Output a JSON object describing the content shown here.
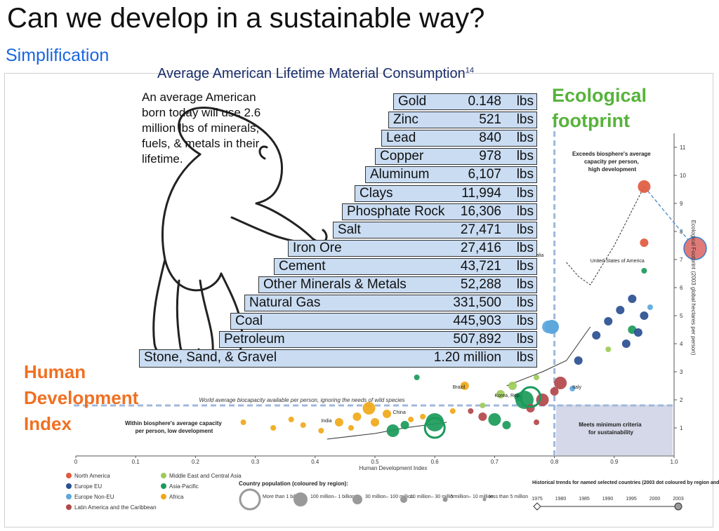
{
  "slide": {
    "title": "Can we develop in a sustainable way?",
    "subtitle": "Simplification"
  },
  "stairs": {
    "title": "Average American Lifetime Material Consumption",
    "title_sup": "14",
    "baby_text": "An average American born today will use 2.6 million lbs of minerals, fuels, & metals in their lifetime.",
    "unit": "lbs",
    "items": [
      {
        "name": "Gold",
        "value": "0.148"
      },
      {
        "name": "Zinc",
        "value": "521"
      },
      {
        "name": "Lead",
        "value": "840"
      },
      {
        "name": "Copper",
        "value": "978"
      },
      {
        "name": "Aluminum",
        "value": "6,107"
      },
      {
        "name": "Clays",
        "value": "11,994"
      },
      {
        "name": "Phosphate Rock",
        "value": "16,306"
      },
      {
        "name": "Salt",
        "value": "27,471"
      },
      {
        "name": "Iron Ore",
        "value": "27,416"
      },
      {
        "name": "Cement",
        "value": "43,721"
      },
      {
        "name": "Other Minerals & Metals",
        "value": "52,288"
      },
      {
        "name": "Natural Gas",
        "value": "331,500"
      },
      {
        "name": "Coal",
        "value": "445,903"
      },
      {
        "name": "Petroleum",
        "value": "507,892"
      },
      {
        "name": "Stone, Sand, & Gravel",
        "value": "1.20 million"
      }
    ]
  },
  "labels": {
    "eco": "Ecological\nfootprint",
    "hdi": "Human\nDevelopment\nIndex"
  },
  "chart_data": {
    "type": "scatter",
    "xlabel": "Human Development Index",
    "ylabel": "Ecological Footprint (2003 global hectares per person)",
    "xlim": [
      0,
      1.0
    ],
    "ylim": [
      0,
      11.5
    ],
    "x_ticks": [
      "0",
      "0.1",
      "0.2",
      "0.3",
      "0.4",
      "0.5",
      "0.6",
      "0.7",
      "0.8",
      "0.9",
      "1.0"
    ],
    "y_ticks": [
      "1",
      "2",
      "3",
      "4",
      "5",
      "6",
      "7",
      "8",
      "9",
      "10",
      "11"
    ],
    "biocapacity_line": {
      "y": 1.8,
      "label": "World average biocapacity available per person, ignoring the needs of wild species"
    },
    "hdi_threshold": 0.8,
    "annotations": {
      "top": "Exceeds biosphere's average capacity per person, high development",
      "left": "Within biosphere's average capacity per person, low development",
      "right": "Meets minimum criteria for sustainability"
    },
    "country_labels": [
      "Australia",
      "United States of America",
      "Italy",
      "Korea, Rep.",
      "Brazil",
      "China",
      "India"
    ],
    "region_colors": {
      "North America": "#e05a3e",
      "Europe EU": "#2a4f91",
      "Europe Non-EU": "#5da7dd",
      "Latin America and the Caribbean": "#b3474a",
      "Middle East and Central Asia": "#9ccb58",
      "Asia-Pacific": "#1a9a5a",
      "Africa": "#f0a818"
    },
    "legend": [
      {
        "name": "North America",
        "color": "#e05a3e"
      },
      {
        "name": "Europe EU",
        "color": "#2a4f91"
      },
      {
        "name": "Europe Non-EU",
        "color": "#5da7dd"
      },
      {
        "name": "Latin America and the Caribbean",
        "color": "#b3474a"
      },
      {
        "name": "Middle East and Central Asia",
        "color": "#9ccb58"
      },
      {
        "name": "Asia-Pacific",
        "color": "#1a9a5a"
      },
      {
        "name": "Africa",
        "color": "#f0a818"
      }
    ],
    "population_legend": {
      "title": "Country population (coloured by region):",
      "sizes": [
        "More than 1 billion",
        "100 million– 1 billion",
        "30 million– 100 million",
        "10 million– 30 million",
        "5 million– 10 million",
        "less than 5 million"
      ]
    },
    "trend_legend": {
      "title": "Historical trends for named selected countries (2003 dot coloured by region and sized by population):",
      "years": [
        "1975",
        "1980",
        "1985",
        "1990",
        "1995",
        "2000",
        "2003"
      ]
    },
    "points": [
      {
        "region": "Africa",
        "x": 0.28,
        "y": 1.2,
        "size": 2
      },
      {
        "region": "Africa",
        "x": 0.33,
        "y": 1.0,
        "size": 2
      },
      {
        "region": "Africa",
        "x": 0.36,
        "y": 1.3,
        "size": 2
      },
      {
        "region": "Africa",
        "x": 0.38,
        "y": 1.1,
        "size": 2
      },
      {
        "region": "Africa",
        "x": 0.41,
        "y": 0.9,
        "size": 2
      },
      {
        "region": "Africa",
        "x": 0.44,
        "y": 1.2,
        "size": 3
      },
      {
        "region": "Africa",
        "x": 0.46,
        "y": 1.0,
        "size": 2
      },
      {
        "region": "Africa",
        "x": 0.47,
        "y": 1.4,
        "size": 3
      },
      {
        "region": "Africa",
        "x": 0.49,
        "y": 1.7,
        "size": 4
      },
      {
        "region": "Africa",
        "x": 0.5,
        "y": 1.2,
        "size": 3
      },
      {
        "region": "Africa",
        "x": 0.52,
        "y": 1.5,
        "size": 3
      },
      {
        "region": "Africa",
        "x": 0.56,
        "y": 1.3,
        "size": 2
      },
      {
        "region": "Africa",
        "x": 0.58,
        "y": 1.4,
        "size": 2
      },
      {
        "region": "Africa",
        "x": 0.63,
        "y": 1.6,
        "size": 2
      },
      {
        "region": "Africa",
        "x": 0.65,
        "y": 2.5,
        "size": 3
      },
      {
        "region": "Asia-Pacific",
        "x": 0.53,
        "y": 0.9,
        "size": 4
      },
      {
        "region": "Asia-Pacific",
        "x": 0.55,
        "y": 1.1,
        "size": 3
      },
      {
        "region": "Asia-Pacific",
        "x": 0.57,
        "y": 2.8,
        "size": 2
      },
      {
        "region": "Asia-Pacific",
        "x": 0.6,
        "y": 1.2,
        "size": 5
      },
      {
        "region": "Asia-Pacific",
        "x": 0.7,
        "y": 1.3,
        "size": 4
      },
      {
        "region": "Asia-Pacific",
        "x": 0.72,
        "y": 1.1,
        "size": 3
      },
      {
        "region": "Asia-Pacific",
        "x": 0.74,
        "y": 2.1,
        "size": 3
      },
      {
        "region": "Asia-Pacific",
        "x": 0.75,
        "y": 2.0,
        "size": 5
      },
      {
        "region": "Asia-Pacific",
        "x": 0.93,
        "y": 4.5,
        "size": 3
      },
      {
        "region": "Asia-Pacific",
        "x": 0.95,
        "y": 6.6,
        "size": 2
      },
      {
        "region": "Middle East and Central Asia",
        "x": 0.68,
        "y": 1.8,
        "size": 2
      },
      {
        "region": "Middle East and Central Asia",
        "x": 0.71,
        "y": 2.2,
        "size": 3
      },
      {
        "region": "Middle East and Central Asia",
        "x": 0.73,
        "y": 2.5,
        "size": 3
      },
      {
        "region": "Middle East and Central Asia",
        "x": 0.77,
        "y": 2.8,
        "size": 2
      },
      {
        "region": "Middle East and Central Asia",
        "x": 0.89,
        "y": 3.8,
        "size": 2
      },
      {
        "region": "Latin America and the Caribbean",
        "x": 0.66,
        "y": 1.6,
        "size": 2
      },
      {
        "region": "Latin America and the Caribbean",
        "x": 0.68,
        "y": 1.4,
        "size": 3
      },
      {
        "region": "Latin America and the Caribbean",
        "x": 0.76,
        "y": 1.7,
        "size": 3
      },
      {
        "region": "Latin America and the Caribbean",
        "x": 0.77,
        "y": 1.2,
        "size": 2
      },
      {
        "region": "Latin America and the Caribbean",
        "x": 0.78,
        "y": 2.0,
        "size": 4
      },
      {
        "region": "Latin America and the Caribbean",
        "x": 0.8,
        "y": 2.3,
        "size": 3
      },
      {
        "region": "Latin America and the Caribbean",
        "x": 0.81,
        "y": 2.6,
        "size": 4
      },
      {
        "region": "Europe EU",
        "x": 0.84,
        "y": 3.4,
        "size": 3
      },
      {
        "region": "Europe EU",
        "x": 0.87,
        "y": 4.3,
        "size": 3
      },
      {
        "region": "Europe EU",
        "x": 0.89,
        "y": 4.8,
        "size": 3
      },
      {
        "region": "Europe EU",
        "x": 0.91,
        "y": 5.2,
        "size": 3
      },
      {
        "region": "Europe EU",
        "x": 0.92,
        "y": 4.0,
        "size": 3
      },
      {
        "region": "Europe EU",
        "x": 0.93,
        "y": 5.6,
        "size": 3
      },
      {
        "region": "Europe EU",
        "x": 0.94,
        "y": 4.4,
        "size": 3
      },
      {
        "region": "Europe EU",
        "x": 0.95,
        "y": 5.0,
        "size": 3
      },
      {
        "region": "Europe Non-EU",
        "x": 0.79,
        "y": 4.6,
        "size": 4
      },
      {
        "region": "Europe Non-EU",
        "x": 0.83,
        "y": 2.4,
        "size": 2
      },
      {
        "region": "Europe Non-EU",
        "x": 0.96,
        "y": 5.3,
        "size": 2
      },
      {
        "region": "North America",
        "x": 0.95,
        "y": 9.6,
        "size": 4
      },
      {
        "region": "North America",
        "x": 0.95,
        "y": 7.6,
        "size": 3
      }
    ]
  }
}
